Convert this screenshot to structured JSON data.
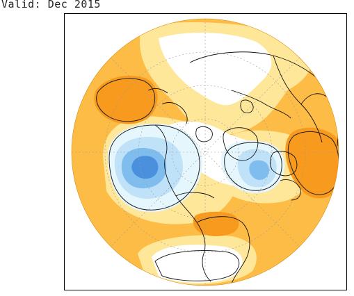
{
  "header": {
    "valid_text": "Valid: Dec 2015"
  },
  "map": {
    "projection": "north-polar-stereographic",
    "colors": {
      "light_orange": "#ffe79a",
      "orange": "#fdbc45",
      "dark_orange": "#f79a1e",
      "near_neutral_blue": "#e6f6fd",
      "light_blue": "#bfe2f9",
      "medium_blue": "#7fbdee",
      "dark_blue": "#4a90dc",
      "land_outline": "#111111",
      "grid": "#9a9a9a"
    }
  }
}
